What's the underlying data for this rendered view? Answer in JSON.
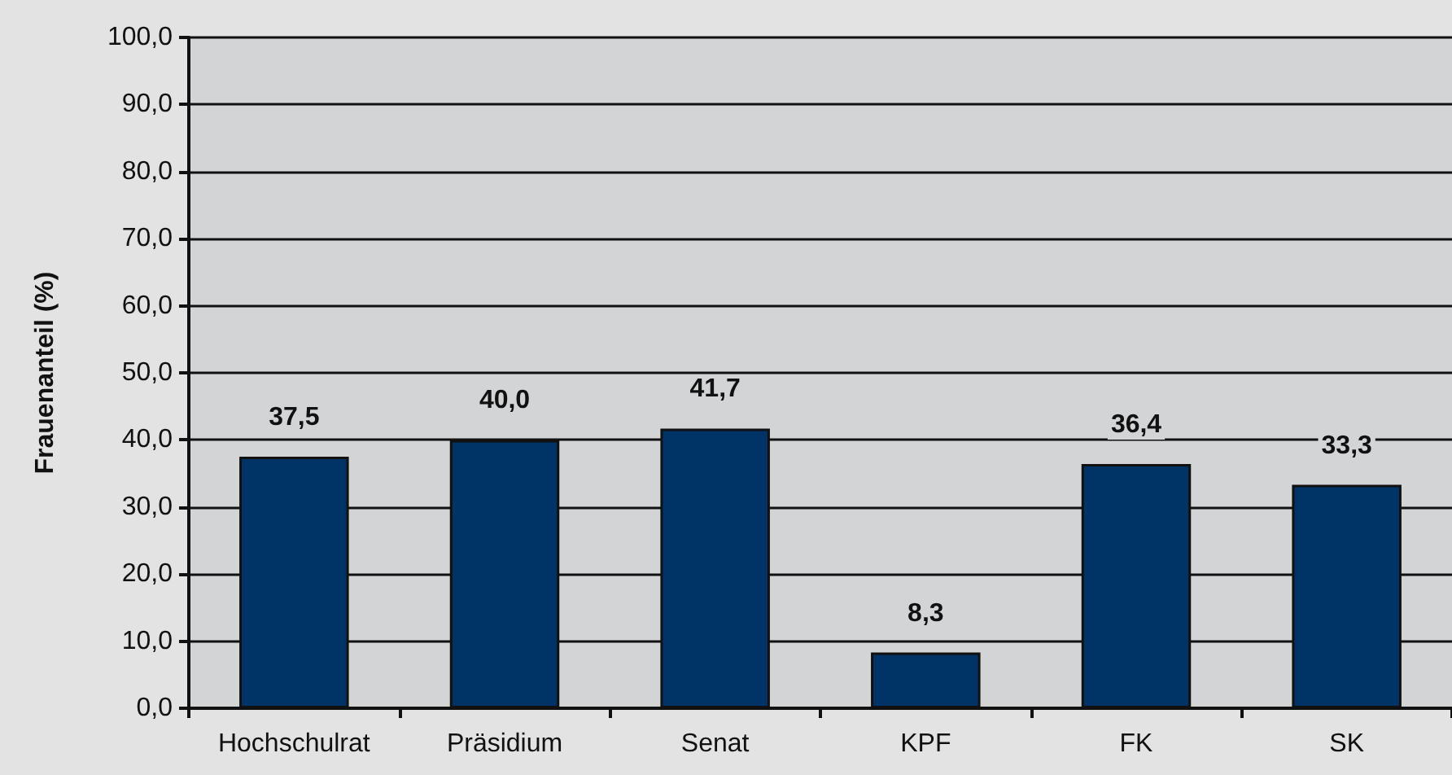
{
  "chart_data": {
    "type": "bar",
    "ylabel": "Frauenanteil (%)",
    "categories": [
      "Hochschulrat",
      "Präsidium",
      "Senat",
      "KPF",
      "FK",
      "SK"
    ],
    "values": [
      37.5,
      40.0,
      41.7,
      8.3,
      36.4,
      33.3
    ],
    "value_labels": [
      "37,5",
      "40,0",
      "41,7",
      "8,3",
      "36,4",
      "33,3"
    ],
    "color": "#003366",
    "ylim": [
      0,
      100
    ],
    "yticks": [
      {
        "value": 0,
        "label": "0,0"
      },
      {
        "value": 10,
        "label": "10,0"
      },
      {
        "value": 20,
        "label": "20,0"
      },
      {
        "value": 30,
        "label": "30,0"
      },
      {
        "value": 40,
        "label": "40,0"
      },
      {
        "value": 50,
        "label": "50,0"
      },
      {
        "value": 60,
        "label": "60,0"
      },
      {
        "value": 70,
        "label": "70,0"
      },
      {
        "value": 80,
        "label": "80,0"
      },
      {
        "value": 90,
        "label": "90,0"
      },
      {
        "value": 100,
        "label": "100,0"
      }
    ],
    "grid": "y"
  }
}
